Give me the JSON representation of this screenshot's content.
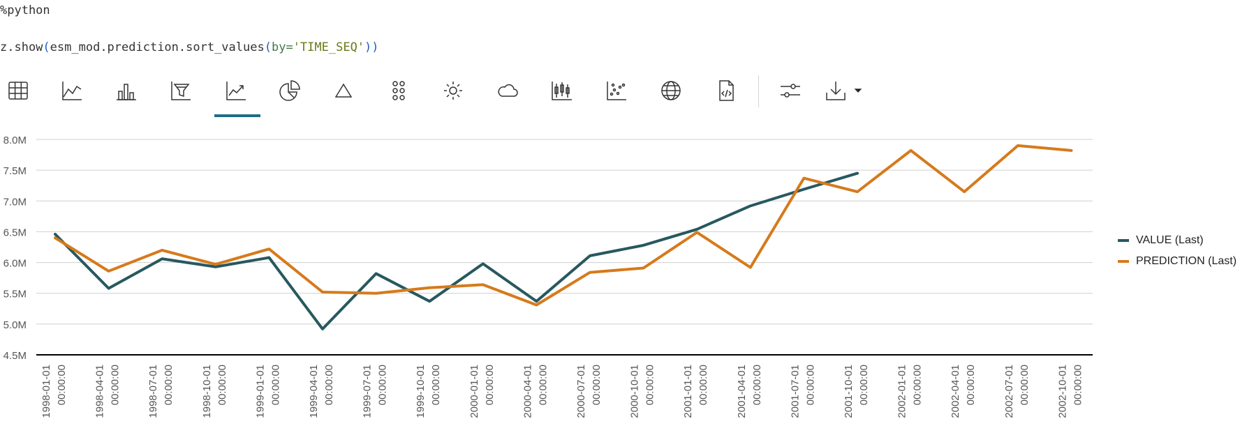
{
  "code": {
    "line1": "%python",
    "line2_fn": "z.show",
    "line2_open": "(",
    "line2_obj": "esm_mod.prediction.sort_values",
    "line2_open2": "(",
    "line2_kw": "by=",
    "line2_str": "'TIME_SEQ'",
    "line2_close": "))"
  },
  "toolbar": {
    "buttons": [
      {
        "icon": "table-icon"
      },
      {
        "icon": "area-chart-icon"
      },
      {
        "icon": "bar-chart-icon"
      },
      {
        "icon": "funnel-chart-icon"
      },
      {
        "icon": "line-chart-icon",
        "active": true
      },
      {
        "icon": "pie-chart-icon"
      },
      {
        "icon": "pyramid-chart-icon"
      },
      {
        "icon": "dots-grid-icon"
      },
      {
        "icon": "sunburst-icon"
      },
      {
        "icon": "word-cloud-icon"
      },
      {
        "icon": "boxplot-icon"
      },
      {
        "icon": "scatter-chart-icon"
      },
      {
        "icon": "map-globe-icon"
      },
      {
        "icon": "code-file-icon"
      },
      {
        "icon": "settings-sliders-icon"
      },
      {
        "icon": "download-icon"
      }
    ]
  },
  "colors": {
    "value": "#27585f",
    "prediction": "#d67a1c",
    "grid": "#cfcfcf",
    "axis": "#000000"
  },
  "chart_data": {
    "type": "line",
    "title": "",
    "xlabel": "",
    "ylabel": "",
    "ylim": [
      4.5,
      8.0
    ],
    "yticks": [
      "4.5M",
      "5.0M",
      "5.5M",
      "6.0M",
      "6.5M",
      "7.0M",
      "7.5M",
      "8.0M"
    ],
    "categories": [
      "1998-01-01 00:00:00",
      "1998-04-01 00:00:00",
      "1998-07-01 00:00:00",
      "1998-10-01 00:00:00",
      "1999-01-01 00:00:00",
      "1999-04-01 00:00:00",
      "1999-07-01 00:00:00",
      "1999-10-01 00:00:00",
      "2000-01-01 00:00:00",
      "2000-04-01 00:00:00",
      "2000-07-01 00:00:00",
      "2000-10-01 00:00:00",
      "2001-01-01 00:00:00",
      "2001-04-01 00:00:00",
      "2001-07-01 00:00:00",
      "2001-10-01 00:00:00",
      "2002-01-01 00:00:00",
      "2002-04-01 00:00:00",
      "2002-07-01 00:00:00",
      "2002-10-01 00:00:00"
    ],
    "series": [
      {
        "name": "VALUE (Last)",
        "color": "#27585f",
        "values": [
          6.46,
          5.58,
          6.06,
          5.93,
          6.08,
          4.92,
          5.82,
          5.37,
          5.98,
          5.37,
          6.11,
          6.28,
          6.54,
          6.92,
          7.19,
          7.45,
          null,
          null,
          null,
          null
        ]
      },
      {
        "name": "PREDICTION (Last)",
        "color": "#d67a1c",
        "values": [
          6.4,
          5.86,
          6.2,
          5.97,
          6.22,
          5.52,
          5.5,
          5.59,
          5.64,
          5.31,
          5.84,
          5.91,
          6.49,
          5.92,
          7.37,
          7.15,
          7.82,
          7.15,
          7.9,
          7.82
        ]
      }
    ],
    "legend_position": "right"
  }
}
